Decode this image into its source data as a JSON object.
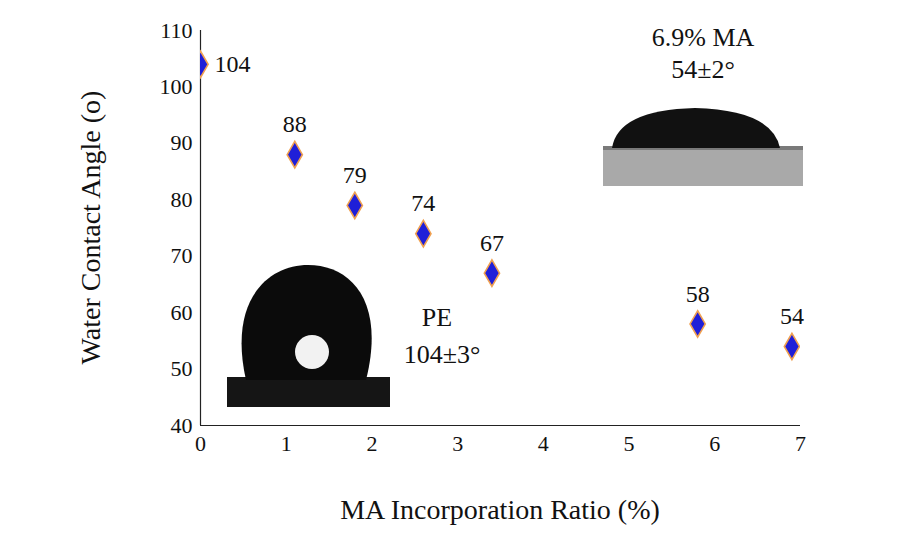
{
  "chart_data": {
    "type": "scatter",
    "xlabel": "MA Incorporation Ratio (%)",
    "ylabel": "Water Contact Angle (o)",
    "x": [
      0,
      1.1,
      1.8,
      2.6,
      3.4,
      5.8,
      6.9
    ],
    "values": [
      104,
      88,
      79,
      74,
      67,
      58,
      54
    ],
    "color": "#1f1fd8",
    "marker": "diamond",
    "data_labels": true,
    "grid": false,
    "xlim": [
      0,
      7
    ],
    "xticks": [
      0,
      1,
      2,
      3,
      4,
      5,
      6,
      7
    ],
    "ylim": [
      40,
      110
    ],
    "yticks": [
      40,
      50,
      60,
      70,
      80,
      90,
      100,
      110
    ],
    "annotations": [
      "6.9% MA",
      "54±2°",
      "PE",
      "104±3°"
    ]
  }
}
